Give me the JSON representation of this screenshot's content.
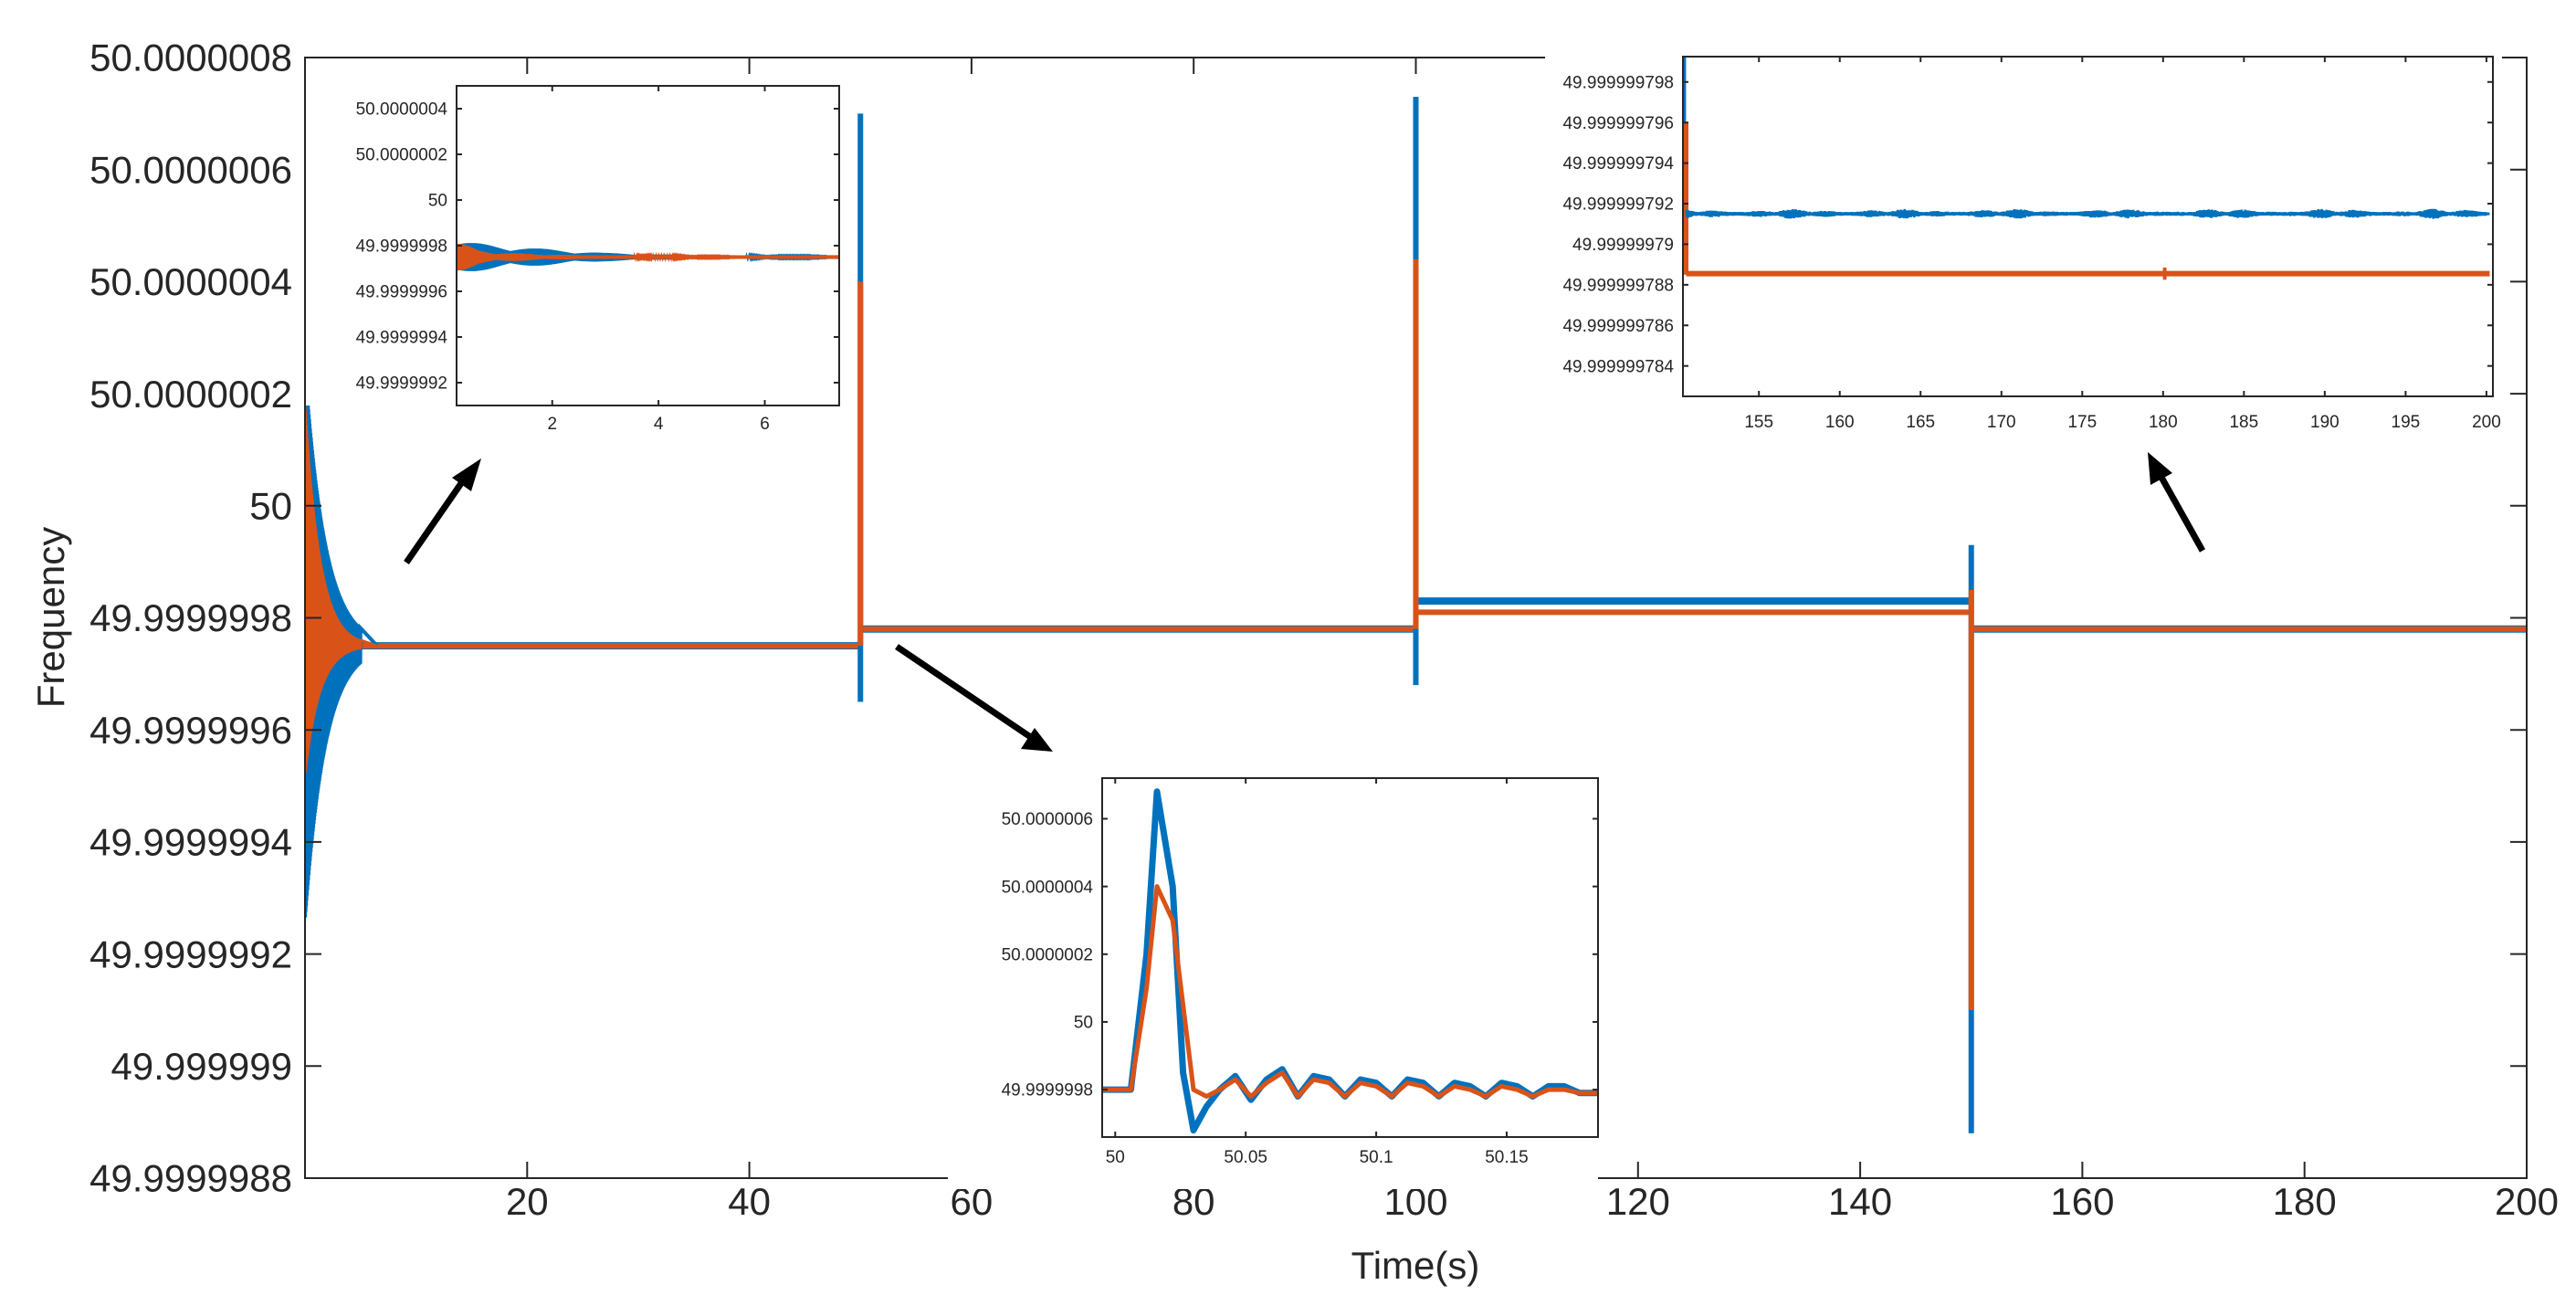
{
  "colors": {
    "series1": "#0072BD",
    "series2": "#D95319",
    "axis": "#262626",
    "arrow": "#000000"
  },
  "chart_data": [
    {
      "id": "main",
      "type": "line",
      "title": "",
      "xlabel": "Time(s)",
      "ylabel": "Frequency",
      "xlim": [
        0,
        200
      ],
      "ylim": [
        49.9999988,
        50.0000008
      ],
      "xticks": [
        20,
        40,
        60,
        80,
        100,
        120,
        140,
        160,
        180,
        200
      ],
      "xtick_labels": [
        "20",
        "40",
        "60",
        "80",
        "100",
        "120",
        "140",
        "160",
        "180",
        "200"
      ],
      "yticks": [
        49.9999988,
        49.999999,
        49.9999992,
        49.9999994,
        49.9999996,
        49.9999998,
        50,
        50.0000002,
        50.0000004,
        50.0000006,
        50.0000008
      ],
      "ytick_labels": [
        "49.9999988",
        "49.999999",
        "49.9999992",
        "49.9999994",
        "49.9999996",
        "49.9999998",
        "50",
        "50.0000002",
        "50.0000004",
        "50.0000006",
        "50.0000008"
      ],
      "steady_levels": [
        {
          "t_start": 0,
          "t_end": 50,
          "series1": 49.99999975,
          "series2": 49.99999975
        },
        {
          "t_start": 50,
          "t_end": 100,
          "series1": 49.99999978,
          "series2": 49.99999978
        },
        {
          "t_start": 100,
          "t_end": 150,
          "series1": 49.99999983,
          "series2": 49.99999981
        },
        {
          "t_start": 150,
          "t_end": 200,
          "series1": 49.99999978,
          "series2": 49.99999978
        }
      ],
      "events": [
        {
          "t": 50,
          "series1_max": 50.0000007,
          "series1_min": 49.99999965,
          "series2_max": 50.0000004,
          "series2_min": 49.99999975
        },
        {
          "t": 100,
          "series1_max": 50.00000073,
          "series1_min": 49.99999968,
          "series2_max": 50.00000044,
          "series2_min": 49.99999978
        },
        {
          "t": 150,
          "series1_max": 49.99999993,
          "series1_min": 49.99999888,
          "series2_max": 49.99999985,
          "series2_min": 49.9999991
        }
      ],
      "startup": {
        "t_end": 5,
        "series1_max": 50.00000025,
        "series1_min": 49.99999926,
        "series2_max": 50.00000018,
        "series2_min": 49.99999952
      },
      "series": [
        {
          "name": "series 1",
          "color": "#0072BD"
        },
        {
          "name": "series 2",
          "color": "#D95319"
        }
      ]
    },
    {
      "id": "inset_start",
      "type": "line",
      "xlim": [
        0.2,
        7.4
      ],
      "ylim": [
        49.9999991,
        50.0000005
      ],
      "xticks": [
        2,
        4,
        6
      ],
      "xtick_labels": [
        "2",
        "4",
        "6"
      ],
      "yticks": [
        49.9999992,
        49.9999994,
        49.9999996,
        49.9999998,
        50,
        50.0000002,
        50.0000004
      ],
      "ytick_labels": [
        "49.9999992",
        "49.9999994",
        "49.9999996",
        "49.9999998",
        "50",
        "50.0000002",
        "50.0000004"
      ],
      "steady": 49.99999975,
      "series1_envelope": {
        "t": [
          0.2,
          0.6,
          1.0,
          1.6,
          2.2,
          3.0,
          4.0,
          5.0,
          6.0,
          7.4
        ],
        "amp": [
          7e-08,
          6e-08,
          5e-08,
          4e-08,
          3e-08,
          1.8e-08,
          1.2e-08,
          6e-09,
          3e-09,
          2e-09
        ]
      },
      "series2_envelope": {
        "t": [
          0.2,
          0.6,
          1.0,
          1.6,
          2.2,
          3.0,
          4.0,
          5.0,
          6.0,
          7.4
        ],
        "amp": [
          7e-08,
          3e-08,
          2e-08,
          1.4e-08,
          1e-08,
          6e-09,
          4e-09,
          2e-09,
          1e-09,
          1e-09
        ]
      }
    },
    {
      "id": "inset_event50",
      "type": "line",
      "xlim": [
        49.995,
        50.185
      ],
      "ylim": [
        49.99999966,
        50.00000072
      ],
      "xticks": [
        50,
        50.05,
        50.1,
        50.15
      ],
      "xtick_labels": [
        "50",
        "50.05",
        "50.1",
        "50.15"
      ],
      "yticks": [
        49.9999998,
        50,
        50.0000002,
        50.0000004,
        50.0000006
      ],
      "ytick_labels": [
        "49.9999998",
        "50",
        "50.0000002",
        "50.0000004",
        "50.0000006"
      ],
      "series1": {
        "t": [
          49.995,
          50.0,
          50.006,
          50.012,
          50.016,
          50.022,
          50.026,
          50.03,
          50.035,
          50.04,
          50.046,
          50.052,
          50.058,
          50.064,
          50.07,
          50.076,
          50.082,
          50.088,
          50.094,
          50.1,
          50.106,
          50.112,
          50.118,
          50.124,
          50.13,
          50.136,
          50.142,
          50.148,
          50.154,
          50.16,
          50.166,
          50.172,
          50.178,
          50.185
        ],
        "v": [
          49.9999998,
          49.9999998,
          49.9999998,
          50.0000002,
          50.00000068,
          50.0000004,
          49.99999985,
          49.99999968,
          49.99999975,
          49.9999998,
          49.99999984,
          49.99999977,
          49.99999983,
          49.99999986,
          49.99999978,
          49.99999984,
          49.99999983,
          49.99999978,
          49.99999983,
          49.99999982,
          49.99999978,
          49.99999983,
          49.99999982,
          49.99999978,
          49.99999982,
          49.99999981,
          49.99999978,
          49.99999982,
          49.99999981,
          49.99999978,
          49.99999981,
          49.99999981,
          49.99999979,
          49.99999979
        ]
      },
      "series2": {
        "t": [
          49.995,
          50.0,
          50.006,
          50.012,
          50.016,
          50.022,
          50.026,
          50.03,
          50.035,
          50.04,
          50.046,
          50.052,
          50.058,
          50.064,
          50.07,
          50.076,
          50.082,
          50.088,
          50.094,
          50.1,
          50.106,
          50.112,
          50.118,
          50.124,
          50.13,
          50.136,
          50.142,
          50.148,
          50.154,
          50.16,
          50.166,
          50.172,
          50.178,
          50.185
        ],
        "v": [
          49.9999998,
          49.9999998,
          49.9999998,
          50.0000001,
          50.0000004,
          50.0000003,
          50.00000005,
          49.9999998,
          49.99999978,
          49.9999998,
          49.99999983,
          49.99999978,
          49.99999982,
          49.99999985,
          49.99999978,
          49.99999983,
          49.99999982,
          49.99999978,
          49.99999982,
          49.99999981,
          49.99999978,
          49.99999982,
          49.99999981,
          49.99999978,
          49.99999981,
          49.9999998,
          49.99999978,
          49.99999981,
          49.9999998,
          49.99999978,
          49.9999998,
          49.9999998,
          49.99999979,
          49.99999979
        ]
      }
    },
    {
      "id": "inset_end",
      "type": "line",
      "xlim": [
        150.3,
        200.4
      ],
      "ylim": [
        49.9999997825,
        49.99999979925
      ],
      "xticks": [
        155,
        160,
        165,
        170,
        175,
        180,
        185,
        190,
        195,
        200
      ],
      "xtick_labels": [
        "155",
        "160",
        "165",
        "170",
        "175",
        "180",
        "185",
        "190",
        "195",
        "200"
      ],
      "yticks": [
        49.999999784,
        49.999999786,
        49.999999788,
        49.99999979,
        49.999999792,
        49.999999794,
        49.999999796,
        49.999999798
      ],
      "ytick_labels": [
        "49.999999784",
        "49.999999786",
        "49.999999788",
        "49.99999979",
        "49.999999792",
        "49.999999794",
        "49.999999796",
        "49.999999798"
      ],
      "series1_level": 49.9999997915,
      "series2_level": 49.99999978855,
      "series1_noise_amp": 2.5e-10,
      "series2_noise_amp": 5e-11
    }
  ]
}
